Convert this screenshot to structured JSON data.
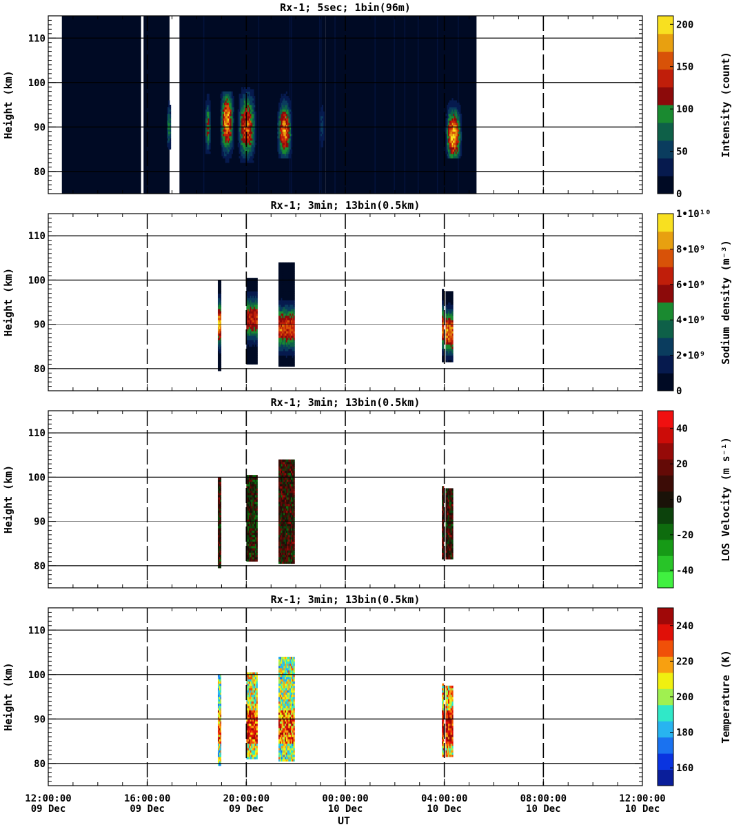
{
  "figure": {
    "xlabel": "UT",
    "ylabel": "Height (km)"
  },
  "chart_data": [
    {
      "type": "heatmap",
      "title": "Rx-1;  5sec; 1bin(96m)",
      "xlabel": "UT",
      "ylabel": "Height (km)",
      "ylim": [
        75,
        115
      ],
      "yticks": [
        "80",
        "90",
        "100",
        "110"
      ],
      "x_ticks": [
        "12:00:00 09 Dec",
        "16:00:00 09 Dec",
        "20:00:00 09 Dec",
        "00:00:00 10 Dec",
        "04:00:00 10 Dec",
        "08:00:00 10 Dec",
        "12:00:00 10 Dec"
      ],
      "xlim_hours_ut": [
        12,
        36
      ],
      "colorbar": {
        "label": "Intensity (count)",
        "ticks": [
          "0",
          "50",
          "100",
          "150",
          "200"
        ],
        "range": [
          0,
          210
        ],
        "colors": [
          "#000a24",
          "#061a4e",
          "#0a3c5e",
          "#0e6048",
          "#1a8a30",
          "#8c0a0a",
          "#c01e0a",
          "#d85208",
          "#e8a010",
          "#f8e020"
        ]
      },
      "grid": "horizontal solid at 80,90,100,110 km; vertical dashed every 4 h",
      "data_coverage_hours_ut": [
        [
          12.55,
          15.75
        ],
        [
          15.85,
          16.9
        ],
        [
          17.3,
          23.2
        ],
        [
          23.2,
          29.3
        ]
      ],
      "background_level_count": 5,
      "features": [
        {
          "x_start_hour_ut": 16.75,
          "x_end_hour_ut": 16.95,
          "y_range_km": [
            85,
            97
          ],
          "peak_km": 90,
          "max_count": 100
        },
        {
          "x_start_hour_ut": 18.3,
          "x_end_hour_ut": 18.55,
          "y_range_km": [
            84,
            98
          ],
          "peak_km": 90,
          "max_count": 120
        },
        {
          "x_start_hour_ut": 18.9,
          "x_end_hour_ut": 19.5,
          "y_range_km": [
            82,
            98
          ],
          "peak_km": 91,
          "max_count": 200
        },
        {
          "x_start_hour_ut": 19.6,
          "x_end_hour_ut": 20.4,
          "y_range_km": [
            82,
            99
          ],
          "peak_km": 90,
          "max_count": 170
        },
        {
          "x_start_hour_ut": 21.2,
          "x_end_hour_ut": 21.85,
          "y_range_km": [
            83,
            98
          ],
          "peak_km": 89,
          "max_count": 180
        },
        {
          "x_start_hour_ut": 22.9,
          "x_end_hour_ut": 23.15,
          "y_range_km": [
            84,
            96
          ],
          "peak_km": 90,
          "max_count": 60
        },
        {
          "x_start_hour_ut": 28.0,
          "x_end_hour_ut": 28.7,
          "y_range_km": [
            83,
            97
          ],
          "peak_km": 88,
          "max_count": 210
        }
      ]
    },
    {
      "type": "heatmap",
      "title": "Rx-1; 3min; 13bin(0.5km)",
      "xlabel": "UT",
      "ylabel": "Height (km)",
      "ylim": [
        75,
        115
      ],
      "yticks": [
        "80",
        "90",
        "100",
        "110"
      ],
      "x_ticks": [
        "12:00:00 09 Dec",
        "16:00:00 09 Dec",
        "20:00:00 09 Dec",
        "00:00:00 10 Dec",
        "04:00:00 10 Dec",
        "08:00:00 10 Dec",
        "12:00:00 10 Dec"
      ],
      "xlim_hours_ut": [
        12,
        36
      ],
      "colorbar": {
        "label": "Sodium density (m⁻³)",
        "ticks": [
          "0",
          "2•10⁹",
          "4•10⁹",
          "6•10⁹",
          "8•10⁹",
          "1•10¹⁰"
        ],
        "range": [
          0,
          10000000000
        ],
        "colors": [
          "#000a24",
          "#061a4e",
          "#0a3c5e",
          "#0e6048",
          "#1a8a30",
          "#8c0a0a",
          "#c01e0a",
          "#d85208",
          "#e8a010",
          "#f8e020"
        ]
      },
      "grid": "horizontal solid at 80,90,100,110 km; vertical dashed every 4 h",
      "columns": [
        {
          "x_start_hour_ut": 18.85,
          "x_end_hour_ut": 18.98,
          "y_range_km": [
            79.5,
            100
          ],
          "peak_km": 90,
          "peak_density": 9000000000
        },
        {
          "x_start_hour_ut": 20.0,
          "x_end_hour_ut": 20.45,
          "y_range_km": [
            81,
            100.5
          ],
          "peak_km": 91,
          "peak_density": 7000000000
        },
        {
          "x_start_hour_ut": 21.3,
          "x_end_hour_ut": 21.95,
          "y_range_km": [
            80.5,
            104
          ],
          "peak_km": 89,
          "peak_density": 7500000000
        },
        {
          "x_start_hour_ut": 27.9,
          "x_end_hour_ut": 27.98,
          "y_range_km": [
            81.5,
            98
          ],
          "peak_km": 89,
          "peak_density": 8000000000
        },
        {
          "x_start_hour_ut": 28.05,
          "x_end_hour_ut": 28.35,
          "y_range_km": [
            81.5,
            97.5
          ],
          "peak_km": 88,
          "peak_density": 8500000000
        }
      ]
    },
    {
      "type": "heatmap",
      "title": "Rx-1; 3min; 13bin(0.5km)",
      "xlabel": "UT",
      "ylabel": "Height (km)",
      "ylim": [
        75,
        115
      ],
      "yticks": [
        "80",
        "90",
        "100",
        "110"
      ],
      "x_ticks": [
        "12:00:00 09 Dec",
        "16:00:00 09 Dec",
        "20:00:00 09 Dec",
        "00:00:00 10 Dec",
        "04:00:00 10 Dec",
        "08:00:00 10 Dec",
        "12:00:00 10 Dec"
      ],
      "xlim_hours_ut": [
        12,
        36
      ],
      "colorbar": {
        "label": "LOS Velocity (m s⁻¹)",
        "ticks": [
          "-40",
          "-20",
          "0",
          "20",
          "40"
        ],
        "range": [
          -50,
          50
        ],
        "colors": [
          "#40f040",
          "#28c428",
          "#169a16",
          "#0e6c0e",
          "#0c420c",
          "#1a1208",
          "#3c0c06",
          "#640a06",
          "#960a08",
          "#cc0c08",
          "#f01010"
        ]
      },
      "grid": "horizontal solid at 80,90,100,110 km; vertical dashed every 4 h",
      "columns": [
        {
          "x_start_hour_ut": 18.85,
          "x_end_hour_ut": 18.98,
          "y_range_km": [
            79.5,
            100
          ],
          "mean_velocity": 5
        },
        {
          "x_start_hour_ut": 20.0,
          "x_end_hour_ut": 20.45,
          "y_range_km": [
            81,
            100.5
          ],
          "mean_velocity": 0
        },
        {
          "x_start_hour_ut": 21.3,
          "x_end_hour_ut": 21.95,
          "y_range_km": [
            80.5,
            104
          ],
          "mean_velocity": 5
        },
        {
          "x_start_hour_ut": 27.9,
          "x_end_hour_ut": 27.98,
          "y_range_km": [
            81.5,
            98
          ],
          "mean_velocity": 10
        },
        {
          "x_start_hour_ut": 28.05,
          "x_end_hour_ut": 28.35,
          "y_range_km": [
            81.5,
            97.5
          ],
          "mean_velocity": 5
        }
      ]
    },
    {
      "type": "heatmap",
      "title": "Rx-1; 3min; 13bin(0.5km)",
      "xlabel": "UT",
      "ylabel": "Height (km)",
      "ylim": [
        75,
        115
      ],
      "yticks": [
        "80",
        "90",
        "100",
        "110"
      ],
      "x_ticks": [
        "12:00:00 09 Dec",
        "16:00:00 09 Dec",
        "20:00:00 09 Dec",
        "00:00:00 10 Dec",
        "04:00:00 10 Dec",
        "08:00:00 10 Dec",
        "12:00:00 10 Dec"
      ],
      "xlim_hours_ut": [
        12,
        36
      ],
      "colorbar": {
        "label": "Temperature (K)",
        "ticks": [
          "160",
          "180",
          "200",
          "220",
          "240"
        ],
        "range": [
          150,
          250
        ],
        "colors": [
          "#0a1e9a",
          "#0a34e0",
          "#1a72f0",
          "#28b4f0",
          "#30e8c8",
          "#a0f050",
          "#f0f010",
          "#f8a010",
          "#f05008",
          "#e01008",
          "#a00808"
        ]
      },
      "grid": "horizontal solid at 80,90,100,110 km; vertical dashed every 4 h",
      "columns": [
        {
          "x_start_hour_ut": 18.85,
          "x_end_hour_ut": 18.98,
          "y_range_km": [
            79.5,
            100
          ],
          "mean_temperature": 195
        },
        {
          "x_start_hour_ut": 20.0,
          "x_end_hour_ut": 20.45,
          "y_range_km": [
            81,
            100.5
          ],
          "mean_temperature": 205
        },
        {
          "x_start_hour_ut": 21.3,
          "x_end_hour_ut": 21.95,
          "y_range_km": [
            80.5,
            104
          ],
          "mean_temperature": 200
        },
        {
          "x_start_hour_ut": 27.9,
          "x_end_hour_ut": 27.98,
          "y_range_km": [
            81.5,
            98
          ],
          "mean_temperature": 210
        },
        {
          "x_start_hour_ut": 28.05,
          "x_end_hour_ut": 28.35,
          "y_range_km": [
            81.5,
            97.5
          ],
          "mean_temperature": 215
        }
      ]
    }
  ]
}
